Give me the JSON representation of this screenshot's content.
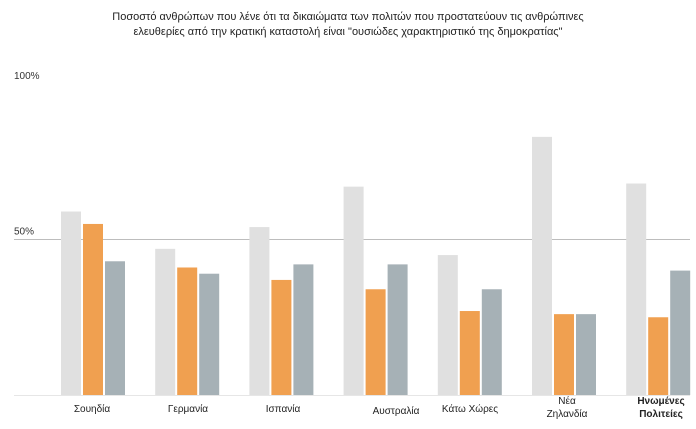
{
  "chart_data": {
    "type": "bar",
    "title_lines": [
      "Ποσοστό ανθρώπων που λένε ότι τα δικαιώματα των πολιτών που προστατεύουν τις ανθρώπινες",
      "ελευθερίες από την κρατική καταστολή είναι \"ουσιώδες χαρακτηριστικό της δημοκρατίας\""
    ],
    "categories": [
      [
        "Σουηδία"
      ],
      [
        "Γερμανία"
      ],
      [
        "Ισπανία"
      ],
      [
        "Αυστραλία"
      ],
      [
        "Κάτω Χώρες"
      ],
      [
        "Νέα",
        "Ζηλανδία"
      ],
      [
        "Ηνωμένες",
        "Πολιτείες"
      ]
    ],
    "highlight_category_index": 6,
    "series": [
      {
        "name": "series-1",
        "color": "#e0e0e0",
        "values": [
          59,
          47,
          54,
          67,
          45,
          83,
          68
        ]
      },
      {
        "name": "series-2",
        "color": "#f0a050",
        "values": [
          55,
          41,
          37,
          34,
          27,
          26,
          25
        ]
      },
      {
        "name": "series-3",
        "color": "#a6b1b6",
        "values": [
          43,
          39,
          42,
          42,
          34,
          26,
          40
        ]
      }
    ],
    "yticks": [
      {
        "value": 100,
        "label": "100%"
      },
      {
        "value": 50,
        "label": "50%"
      }
    ],
    "gridlines": [
      50
    ],
    "ylim": [
      0,
      100
    ],
    "xlabel": "",
    "ylabel": ""
  }
}
